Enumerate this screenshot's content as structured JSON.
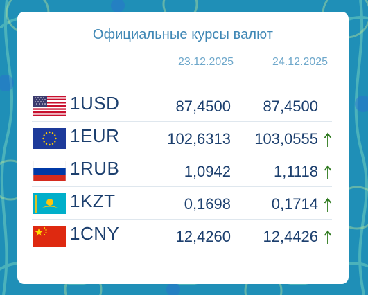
{
  "header": {
    "title": "Официальные курсы валют",
    "date_prev": "23.12.2025",
    "date_curr": "24.12.2025"
  },
  "rates": [
    {
      "code": "1USD",
      "flag": "usa-flag-icon",
      "prev": "87,4500",
      "curr": "87,4500",
      "trend": "none"
    },
    {
      "code": "1EUR",
      "flag": "eu-flag-icon",
      "prev": "102,6313",
      "curr": "103,0555",
      "trend": "up"
    },
    {
      "code": "1RUB",
      "flag": "russia-flag-icon",
      "prev": "1,0942",
      "curr": "1,1118",
      "trend": "up"
    },
    {
      "code": "1KZT",
      "flag": "kazakhstan-flag-icon",
      "prev": "0,1698",
      "curr": "0,1714",
      "trend": "up"
    },
    {
      "code": "1CNY",
      "flag": "china-flag-icon",
      "prev": "12,4260",
      "curr": "12,4426",
      "trend": "up"
    }
  ],
  "colors": {
    "text": "#1c3f6e",
    "title": "#3f87b5",
    "arrow_up": "#2f7a1f",
    "background": "#1f8fb7"
  }
}
